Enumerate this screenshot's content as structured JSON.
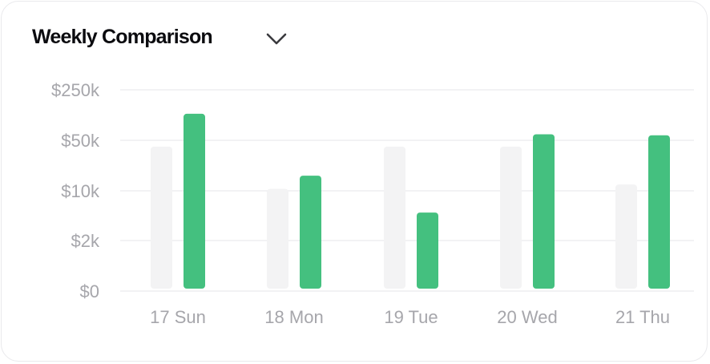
{
  "header": {
    "title": "Weekly Comparison",
    "dropdown_icon": "chevron-down-icon"
  },
  "colors": {
    "current_week": "#44c07f",
    "previous_week": "#f3f3f4",
    "gridline": "#eeeef0",
    "tick_text": "#a6a6ab",
    "title_text": "#0b0b0f"
  },
  "chart_data": {
    "type": "bar",
    "categories": [
      "17 Sun",
      "18 Mon",
      "19 Tue",
      "20 Wed",
      "21 Thu"
    ],
    "y_ticks": [
      "$0",
      "$2k",
      "$10k",
      "$50k",
      "$250k"
    ],
    "y_tick_values": [
      0,
      2000,
      10000,
      50000,
      250000
    ],
    "y_scale": "log-like (0, 2k, 10k, 50k, 250k evenly spaced)",
    "ylim": [
      0,
      250000
    ],
    "grid": true,
    "legend": "none",
    "series": [
      {
        "values": [
          45000,
          11500,
          45000,
          45000,
          15000
        ],
        "color": "#f3f3f4"
      },
      {
        "values": [
          155000,
          22000,
          6500,
          74000,
          70000
        ],
        "color": "#44c07f"
      }
    ]
  }
}
